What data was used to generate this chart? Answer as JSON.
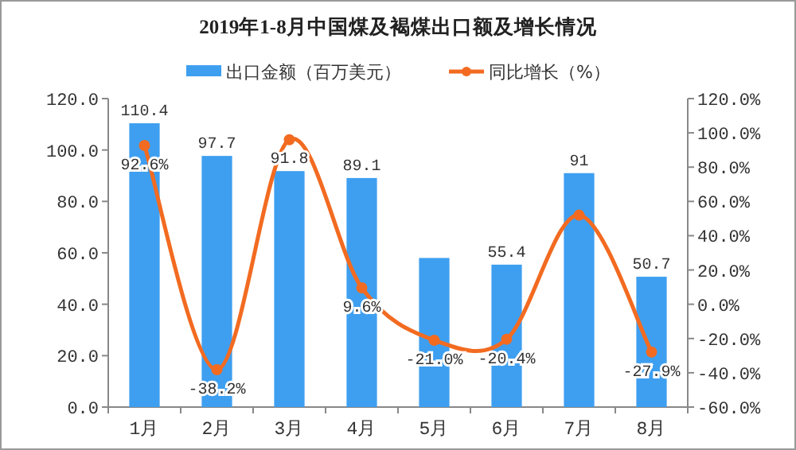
{
  "chart_data": {
    "type": "bar",
    "title": "2019年1-8月中国煤及褐煤出口额及增长情况",
    "categories": [
      "1月",
      "2月",
      "3月",
      "4月",
      "5月",
      "6月",
      "7月",
      "8月"
    ],
    "series": [
      {
        "name": "出口金额（百万美元）",
        "color": "#3e9ff0",
        "values": [
          110.4,
          97.7,
          91.8,
          89.1,
          58,
          55.4,
          91,
          50.7
        ],
        "value_labels": [
          "110.4",
          "97.7",
          "91.8",
          "89.1",
          null,
          "55.4",
          "91",
          "50.7"
        ]
      },
      {
        "name": "同比增长（%）",
        "type": "line",
        "axis": "y2",
        "color": "#f26b21",
        "marker": "circle",
        "values": [
          92.6,
          -38.2,
          96,
          9.6,
          -21.0,
          -20.4,
          52,
          -27.9
        ],
        "value_labels": [
          "92.6%",
          "-38.2%",
          null,
          "9.6%",
          "-21.0%",
          "-20.4%",
          null,
          "-27.9%"
        ]
      }
    ],
    "ylim": [
      0,
      120
    ],
    "yticks": [
      {
        "value": 0,
        "label": "0.0"
      },
      {
        "value": 20,
        "label": "20.0"
      },
      {
        "value": 40,
        "label": "40.0"
      },
      {
        "value": 60,
        "label": "60.0"
      },
      {
        "value": 80,
        "label": "80.0"
      },
      {
        "value": 100,
        "label": "100.0"
      },
      {
        "value": 120,
        "label": "120.0"
      }
    ],
    "y2lim": [
      -60,
      120
    ],
    "y2ticks": [
      {
        "value": -60,
        "label": "-60.0%"
      },
      {
        "value": -40,
        "label": "-40.0%"
      },
      {
        "value": -20,
        "label": "-20.0%"
      },
      {
        "value": 0,
        "label": "0.0%"
      },
      {
        "value": 20,
        "label": "20.0%"
      },
      {
        "value": 40,
        "label": "40.0%"
      },
      {
        "value": 60,
        "label": "60.0%"
      },
      {
        "value": 80,
        "label": "80.0%"
      },
      {
        "value": 100,
        "label": "100.0%"
      },
      {
        "value": 120,
        "label": "120.0%"
      }
    ],
    "legend": "top",
    "grid": false
  }
}
